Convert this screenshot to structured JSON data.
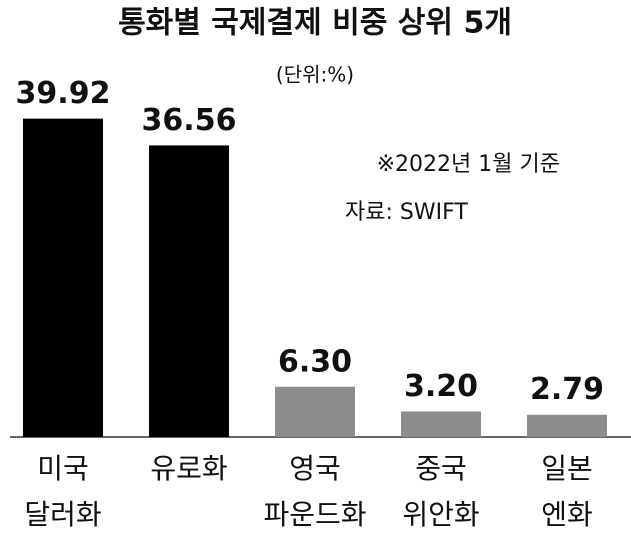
{
  "chart_data": {
    "type": "bar",
    "title": "통화별 국제결제 비중 상위 5개",
    "subtitle": "(단위:%)",
    "annotations": [
      "※2022년 1월 기준",
      "자료: SWIFT"
    ],
    "categories": [
      [
        "미국",
        "달러화"
      ],
      [
        "유로화"
      ],
      [
        "영국",
        "파운드화"
      ],
      [
        "중국",
        "위안화"
      ],
      [
        "일본",
        "엔화"
      ]
    ],
    "values": [
      39.92,
      36.56,
      6.3,
      3.2,
      2.79
    ],
    "value_labels": [
      "39.92",
      "36.56",
      "6.30",
      "3.20",
      "2.79"
    ],
    "colors": [
      "#000000",
      "#000000",
      "#8c8c8c",
      "#8c8c8c",
      "#8c8c8c"
    ],
    "ylim": [
      0,
      40
    ]
  }
}
